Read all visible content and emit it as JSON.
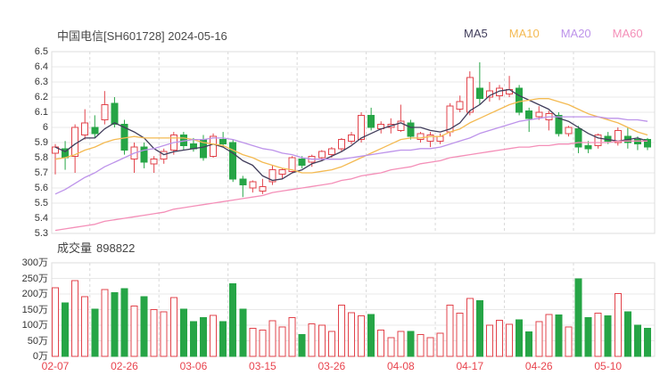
{
  "title": "中国电信[SH601728] 2024-05-16",
  "legend": [
    {
      "label": "MA5",
      "color": "#413d5b"
    },
    {
      "label": "MA10",
      "color": "#f4ba52"
    },
    {
      "label": "MA20",
      "color": "#bd93ea"
    },
    {
      "label": "MA60",
      "color": "#f48fb8"
    }
  ],
  "volume_title": {
    "label": "成交量",
    "value": "898822"
  },
  "colors": {
    "up": "#e2434b",
    "up_fill": "#ffffff",
    "down": "#26a546",
    "grid": "#e8e8e8",
    "grid_dash": "#d9d9d9",
    "border": "#dddddd",
    "axis_text": "#333333",
    "date_text": "#e8444e",
    "title_text": "#4a4a4a"
  },
  "chart_data": {
    "type": "candlestick",
    "title": "中国电信[SH601728] 2024-05-16",
    "legend_entries": [
      "MA5",
      "MA10",
      "MA20",
      "MA60"
    ],
    "legend_position": "top-right",
    "grid": true,
    "price_axis": {
      "min": 5.3,
      "max": 6.5,
      "step": 0.1,
      "tick_labels": [
        "6.5",
        "6.4",
        "6.3",
        "6.2",
        "6.1",
        "6",
        "5.9",
        "5.8",
        "5.7",
        "5.6",
        "5.5",
        "5.4",
        "5.3"
      ]
    },
    "volume_axis": {
      "min": 0,
      "max": 300,
      "step": 50,
      "unit": "万",
      "tick_labels": [
        "300万",
        "250万",
        "200万",
        "150万",
        "100万",
        "50万",
        "0万"
      ]
    },
    "x_ticks": {
      "labels": [
        "02-07",
        "02-26",
        "03-06",
        "03-15",
        "03-26",
        "04-08",
        "04-17",
        "04-26",
        "05-10"
      ],
      "day_indices": [
        0,
        7,
        14,
        21,
        28,
        35,
        42,
        49,
        56
      ]
    },
    "dates": [
      "02-07",
      "02-08",
      "02-19",
      "02-20",
      "02-21",
      "02-22",
      "02-23",
      "02-26",
      "02-27",
      "02-28",
      "02-29",
      "03-01",
      "03-04",
      "03-05",
      "03-06",
      "03-07",
      "03-08",
      "03-11",
      "03-12",
      "03-13",
      "03-14",
      "03-15",
      "03-18",
      "03-19",
      "03-20",
      "03-21",
      "03-22",
      "03-25",
      "03-26",
      "03-27",
      "03-28",
      "03-29",
      "04-01",
      "04-02",
      "04-03",
      "04-08",
      "04-09",
      "04-10",
      "04-11",
      "04-12",
      "04-15",
      "04-16",
      "04-17",
      "04-18",
      "04-19",
      "04-22",
      "04-23",
      "04-24",
      "04-25",
      "04-26",
      "04-29",
      "04-30",
      "05-06",
      "05-07",
      "05-08",
      "05-09",
      "05-10",
      "05-13",
      "05-14",
      "05-15",
      "05-16"
    ],
    "ohlc": [
      [
        5.83,
        5.89,
        5.69,
        5.87
      ],
      [
        5.86,
        5.91,
        5.72,
        5.8
      ],
      [
        5.81,
        6.02,
        5.7,
        6.0
      ],
      [
        5.95,
        6.12,
        5.92,
        6.03
      ],
      [
        6.0,
        6.08,
        5.93,
        5.96
      ],
      [
        6.05,
        6.24,
        6.02,
        6.15
      ],
      [
        6.16,
        6.2,
        6.0,
        6.02
      ],
      [
        6.02,
        6.05,
        5.82,
        5.85
      ],
      [
        5.79,
        5.9,
        5.7,
        5.87
      ],
      [
        5.87,
        5.9,
        5.73,
        5.77
      ],
      [
        5.76,
        5.81,
        5.7,
        5.79
      ],
      [
        5.79,
        5.86,
        5.76,
        5.84
      ],
      [
        5.85,
        5.97,
        5.82,
        5.95
      ],
      [
        5.95,
        5.97,
        5.85,
        5.88
      ],
      [
        5.89,
        5.93,
        5.84,
        5.86
      ],
      [
        5.92,
        5.95,
        5.78,
        5.8
      ],
      [
        5.81,
        5.96,
        5.8,
        5.94
      ],
      [
        5.92,
        5.97,
        5.87,
        5.89
      ],
      [
        5.9,
        5.92,
        5.64,
        5.66
      ],
      [
        5.66,
        5.68,
        5.54,
        5.62
      ],
      [
        5.6,
        5.65,
        5.57,
        5.64
      ],
      [
        5.58,
        5.66,
        5.56,
        5.61
      ],
      [
        5.64,
        5.75,
        5.62,
        5.72
      ],
      [
        5.69,
        5.73,
        5.66,
        5.72
      ],
      [
        5.71,
        5.81,
        5.7,
        5.8
      ],
      [
        5.79,
        5.81,
        5.73,
        5.75
      ],
      [
        5.77,
        5.82,
        5.74,
        5.81
      ],
      [
        5.8,
        5.85,
        5.78,
        5.84
      ],
      [
        5.82,
        5.87,
        5.8,
        5.86
      ],
      [
        5.86,
        5.93,
        5.84,
        5.92
      ],
      [
        5.91,
        5.97,
        5.89,
        5.95
      ],
      [
        5.92,
        6.1,
        5.9,
        6.08
      ],
      [
        6.08,
        6.13,
        5.98,
        6.0
      ],
      [
        5.99,
        6.04,
        5.96,
        6.02
      ],
      [
        6.0,
        6.06,
        5.96,
        6.02
      ],
      [
        5.98,
        6.15,
        5.97,
        6.04
      ],
      [
        6.03,
        6.05,
        5.92,
        5.94
      ],
      [
        5.92,
        5.97,
        5.9,
        5.96
      ],
      [
        5.91,
        5.97,
        5.87,
        5.95
      ],
      [
        5.91,
        5.96,
        5.89,
        5.94
      ],
      [
        5.97,
        6.16,
        5.94,
        6.14
      ],
      [
        6.12,
        6.21,
        6.1,
        6.17
      ],
      [
        6.1,
        6.37,
        6.08,
        6.33
      ],
      [
        6.26,
        6.43,
        6.15,
        6.19
      ],
      [
        6.2,
        6.3,
        6.17,
        6.24
      ],
      [
        6.21,
        6.28,
        6.18,
        6.26
      ],
      [
        6.22,
        6.34,
        6.2,
        6.25
      ],
      [
        6.26,
        6.28,
        6.08,
        6.1
      ],
      [
        6.11,
        6.13,
        5.97,
        6.06
      ],
      [
        6.07,
        6.14,
        6.05,
        6.1
      ],
      [
        6.05,
        6.11,
        5.98,
        6.09
      ],
      [
        6.08,
        6.1,
        5.94,
        5.96
      ],
      [
        5.96,
        6.01,
        5.94,
        6.0
      ],
      [
        5.99,
        6.01,
        5.83,
        5.87
      ],
      [
        5.88,
        5.91,
        5.83,
        5.86
      ],
      [
        5.88,
        5.96,
        5.86,
        5.95
      ],
      [
        5.94,
        5.97,
        5.89,
        5.91
      ],
      [
        5.9,
        6.0,
        5.88,
        5.98
      ],
      [
        5.94,
        6.0,
        5.86,
        5.9
      ],
      [
        5.92,
        5.94,
        5.85,
        5.89
      ],
      [
        5.92,
        5.93,
        5.85,
        5.87
      ]
    ],
    "volumes_wan": [
      220,
      172,
      243,
      192,
      152,
      214,
      205,
      217,
      162,
      192,
      150,
      143,
      188,
      152,
      112,
      124,
      131,
      112,
      233,
      152,
      90,
      85,
      115,
      95,
      125,
      70,
      105,
      100,
      80,
      165,
      140,
      130,
      135,
      85,
      60,
      80,
      80,
      70,
      60,
      75,
      165,
      138,
      186,
      178,
      100,
      116,
      103,
      117,
      79,
      112,
      135,
      133,
      95,
      248,
      124,
      138,
      130,
      202,
      143,
      100,
      90
    ],
    "ma5": [
      5.87,
      5.84,
      5.89,
      5.93,
      5.93,
      5.99,
      6.03,
      6.0,
      5.97,
      5.93,
      5.86,
      5.82,
      5.84,
      5.85,
      5.86,
      5.87,
      5.89,
      5.87,
      5.83,
      5.78,
      5.75,
      5.68,
      5.65,
      5.66,
      5.7,
      5.72,
      5.76,
      5.78,
      5.81,
      5.84,
      5.88,
      5.93,
      5.96,
      5.99,
      6.01,
      6.03,
      6.0,
      6.0,
      5.98,
      5.97,
      5.99,
      6.03,
      6.11,
      6.15,
      6.21,
      6.24,
      6.25,
      6.21,
      6.18,
      6.15,
      6.12,
      6.06,
      6.04,
      6.0,
      5.96,
      5.93,
      5.92,
      5.91,
      5.92,
      5.93,
      5.91
    ],
    "ma10": [
      5.79,
      5.8,
      5.82,
      5.85,
      5.87,
      5.9,
      5.92,
      5.93,
      5.94,
      5.93,
      5.93,
      5.93,
      5.93,
      5.93,
      5.92,
      5.9,
      5.89,
      5.88,
      5.85,
      5.82,
      5.8,
      5.77,
      5.75,
      5.73,
      5.72,
      5.7,
      5.7,
      5.71,
      5.72,
      5.74,
      5.77,
      5.8,
      5.83,
      5.86,
      5.89,
      5.92,
      5.93,
      5.93,
      5.94,
      5.94,
      5.97,
      5.99,
      6.03,
      6.06,
      6.09,
      6.12,
      6.15,
      6.17,
      6.18,
      6.19,
      6.19,
      6.17,
      6.15,
      6.12,
      6.09,
      6.07,
      6.05,
      6.03,
      6.0,
      5.97,
      5.95
    ],
    "ma20": [
      5.56,
      5.59,
      5.63,
      5.67,
      5.7,
      5.74,
      5.77,
      5.8,
      5.83,
      5.85,
      5.86,
      5.88,
      5.9,
      5.91,
      5.92,
      5.92,
      5.93,
      5.93,
      5.92,
      5.9,
      5.88,
      5.86,
      5.85,
      5.83,
      5.82,
      5.8,
      5.79,
      5.79,
      5.79,
      5.79,
      5.8,
      5.81,
      5.82,
      5.83,
      5.84,
      5.85,
      5.85,
      5.86,
      5.86,
      5.87,
      5.89,
      5.91,
      5.93,
      5.96,
      5.98,
      6.0,
      6.02,
      6.04,
      6.05,
      6.06,
      6.07,
      6.07,
      6.07,
      6.07,
      6.07,
      6.07,
      6.06,
      6.06,
      6.05,
      6.05,
      6.04
    ],
    "ma60": [
      5.32,
      5.33,
      5.34,
      5.35,
      5.36,
      5.38,
      5.39,
      5.4,
      5.41,
      5.42,
      5.43,
      5.44,
      5.46,
      5.47,
      5.48,
      5.49,
      5.5,
      5.51,
      5.52,
      5.53,
      5.54,
      5.55,
      5.57,
      5.58,
      5.59,
      5.6,
      5.61,
      5.62,
      5.63,
      5.65,
      5.66,
      5.68,
      5.69,
      5.7,
      5.72,
      5.73,
      5.74,
      5.76,
      5.77,
      5.78,
      5.8,
      5.81,
      5.82,
      5.83,
      5.84,
      5.85,
      5.86,
      5.87,
      5.87,
      5.88,
      5.88,
      5.89,
      5.89,
      5.9,
      5.9,
      5.9,
      5.9,
      5.91,
      5.91,
      5.91,
      5.91
    ]
  }
}
